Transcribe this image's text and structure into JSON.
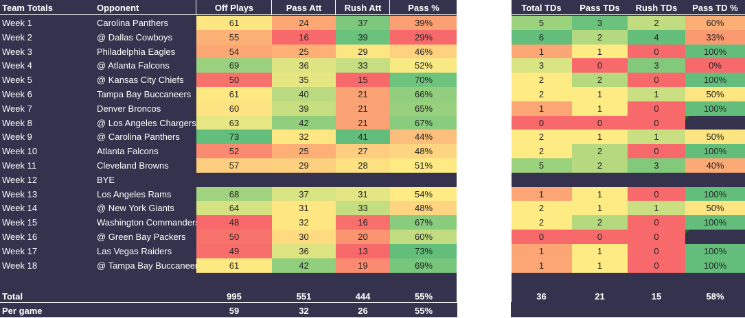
{
  "headers": {
    "left": [
      "Team Totals",
      "Opponent",
      "Off Plays",
      "Pass Att",
      "Rush Att",
      "Pass %"
    ],
    "right": [
      "Total TDs",
      "Pass TDs",
      "Rush TDs",
      "Pass TD %"
    ]
  },
  "rows": [
    {
      "week": "Week 1",
      "opp": "Carolina Panthers",
      "off": "61",
      "pass": "24",
      "rush": "37",
      "pct": "39%",
      "ttd": "5",
      "ptd": "3",
      "rtd": "2",
      "tdp": "60%",
      "c": [
        "#fde581",
        "#fca774",
        "#7dc87c",
        "#fba073"
      ],
      "rc": [
        "#9bd27e",
        "#6bc27c",
        "#c2dd81",
        "#fbae76"
      ]
    },
    {
      "week": "Week 2",
      "opp": "@ Dallas Cowboys",
      "off": "55",
      "pass": "16",
      "rush": "39",
      "pct": "29%",
      "ttd": "6",
      "ptd": "2",
      "rtd": "4",
      "tdp": "33%",
      "c": [
        "#fcb277",
        "#f8696b",
        "#6bc27c",
        "#f8696b"
      ],
      "rc": [
        "#63be7b",
        "#b5d980",
        "#63be7b",
        "#fb9a71"
      ]
    },
    {
      "week": "Week 3",
      "opp": "Philadelphia Eagles",
      "off": "54",
      "pass": "25",
      "rush": "29",
      "pct": "46%",
      "ttd": "1",
      "ptd": "1",
      "rtd": "0",
      "tdp": "100%",
      "c": [
        "#fca875",
        "#fcb076",
        "#fde582",
        "#fdd17f"
      ],
      "rc": [
        "#fba674",
        "#ffeb84",
        "#f8696b",
        "#63be7b"
      ]
    },
    {
      "week": "Week 4",
      "opp": "@ Atlanta Falcons",
      "off": "69",
      "pass": "36",
      "rush": "33",
      "pct": "52%",
      "ttd": "3",
      "ptd": "0",
      "rtd": "3",
      "tdp": "0%",
      "c": [
        "#9ad17e",
        "#dee482",
        "#c5de81",
        "#f8e983"
      ],
      "rc": [
        "#d9e482",
        "#f8696b",
        "#83c97c",
        "#f8696b"
      ]
    },
    {
      "week": "Week 5",
      "opp": "@ Kansas City Chiefs",
      "off": "50",
      "pass": "35",
      "rush": "15",
      "pct": "70%",
      "ttd": "2",
      "ptd": "2",
      "rtd": "0",
      "tdp": "100%",
      "c": [
        "#f8726c",
        "#e6e683",
        "#f8696b",
        "#6ec47c"
      ],
      "rc": [
        "#ffeb84",
        "#b6d980",
        "#f8696b",
        "#63be7b"
      ]
    },
    {
      "week": "Week 6",
      "opp": "Tampa Bay Buccaneers",
      "off": "61",
      "pass": "40",
      "rush": "21",
      "pct": "66%",
      "ttd": "2",
      "ptd": "1",
      "rtd": "1",
      "tdp": "50%",
      "c": [
        "#fde882",
        "#b9da80",
        "#fba274",
        "#91ce7e"
      ],
      "rc": [
        "#ffeb84",
        "#ffeb84",
        "#c9df81",
        "#fde582"
      ]
    },
    {
      "week": "Week 7",
      "opp": "Denver Broncos",
      "off": "60",
      "pass": "39",
      "rush": "21",
      "pct": "65%",
      "ttd": "1",
      "ptd": "1",
      "rtd": "0",
      "tdp": "100%",
      "c": [
        "#fee382",
        "#c7de81",
        "#fba274",
        "#98d07e"
      ],
      "rc": [
        "#fba674",
        "#ffeb84",
        "#f8696b",
        "#63be7b"
      ]
    },
    {
      "week": "Week 8",
      "opp": "@ Los Angeles Chargers",
      "off": "63",
      "pass": "42",
      "rush": "21",
      "pct": "67%",
      "ttd": "0",
      "ptd": "0",
      "rtd": "0",
      "tdp": "",
      "c": [
        "#e6e683",
        "#91ce7e",
        "#fba274",
        "#89cc7d"
      ],
      "rc": [
        "#f8696b",
        "#f8696b",
        "#f8696b",
        "#34324c"
      ],
      "flag": true
    },
    {
      "week": "Week 9",
      "opp": "@ Carolina Panthers",
      "off": "73",
      "pass": "32",
      "rush": "41",
      "pct": "44%",
      "ttd": "2",
      "ptd": "1",
      "rtd": "1",
      "tdp": "50%",
      "c": [
        "#63be7b",
        "#fee783",
        "#63be7b",
        "#fcbe7b"
      ],
      "rc": [
        "#ffeb84",
        "#ffeb84",
        "#c9df81",
        "#fde582"
      ]
    },
    {
      "week": "Week 10",
      "opp": "Atlanta Falcons",
      "off": "52",
      "pass": "25",
      "rush": "27",
      "pct": "48%",
      "ttd": "2",
      "ptd": "2",
      "rtd": "0",
      "tdp": "100%",
      "c": [
        "#fa8b70",
        "#fcb076",
        "#fecd7f",
        "#fdd580"
      ],
      "rc": [
        "#ffeb84",
        "#b6d980",
        "#f8696b",
        "#63be7b"
      ]
    },
    {
      "week": "Week 11",
      "opp": "Cleveland Browns",
      "off": "57",
      "pass": "29",
      "rush": "28",
      "pct": "51%",
      "ttd": "5",
      "ptd": "2",
      "rtd": "3",
      "tdp": "40%",
      "c": [
        "#fdce7f",
        "#fdd07f",
        "#fde081",
        "#feea83"
      ],
      "rc": [
        "#9bd27e",
        "#b6d980",
        "#83c97c",
        "#fbaa75"
      ]
    },
    {
      "week": "Week 12",
      "opp": "BYE",
      "bye": true
    },
    {
      "week": "Week 13",
      "opp": "Los Angeles Rams",
      "off": "68",
      "pass": "37",
      "rush": "31",
      "pct": "54%",
      "ttd": "1",
      "ptd": "1",
      "rtd": "0",
      "tdp": "100%",
      "c": [
        "#a0d27f",
        "#d8e382",
        "#e4e583",
        "#ffeb84"
      ],
      "rc": [
        "#fba674",
        "#ffeb84",
        "#f8696b",
        "#63be7b"
      ]
    },
    {
      "week": "Week 14",
      "opp": "@ New York Giants",
      "off": "64",
      "pass": "31",
      "rush": "33",
      "pct": "48%",
      "ttd": "2",
      "ptd": "1",
      "rtd": "1",
      "tdp": "50%",
      "c": [
        "#d4e282",
        "#fee783",
        "#c5de81",
        "#fdd580"
      ],
      "rc": [
        "#ffeb84",
        "#ffeb84",
        "#c9df81",
        "#fde582"
      ]
    },
    {
      "week": "Week 15",
      "opp": "Washington Commanders",
      "off": "48",
      "pass": "32",
      "rush": "16",
      "pct": "67%",
      "ttd": "2",
      "ptd": "2",
      "rtd": "0",
      "tdp": "100%",
      "c": [
        "#f8696b",
        "#fee783",
        "#f8706c",
        "#89cc7d"
      ],
      "rc": [
        "#ffeb84",
        "#b6d980",
        "#f8696b",
        "#63be7b"
      ]
    },
    {
      "week": "Week 16",
      "opp": "@ Green Bay Packers",
      "off": "50",
      "pass": "30",
      "rush": "20",
      "pct": "60%",
      "ttd": "0",
      "ptd": "0",
      "rtd": "0",
      "tdp": "",
      "c": [
        "#f8726c",
        "#fedb81",
        "#fa9471",
        "#c2dd81"
      ],
      "rc": [
        "#f8696b",
        "#f8696b",
        "#f8696b",
        "#34324c"
      ],
      "flag": true
    },
    {
      "week": "Week 17",
      "opp": "Las Vegas Raiders",
      "off": "49",
      "pass": "36",
      "rush": "13",
      "pct": "73%",
      "ttd": "1",
      "ptd": "1",
      "rtd": "0",
      "tdp": "100%",
      "c": [
        "#f86e6c",
        "#dee482",
        "#f8696b",
        "#63be7b"
      ],
      "rc": [
        "#fba674",
        "#ffeb84",
        "#f8696b",
        "#63be7b"
      ]
    },
    {
      "week": "Week 18",
      "opp": "@ Tampa Bay Buccaneers",
      "off": "61",
      "pass": "42",
      "rush": "19",
      "pct": "69%",
      "ttd": "1",
      "ptd": "1",
      "rtd": "0",
      "tdp": "100%",
      "c": [
        "#fde882",
        "#91ce7e",
        "#fa8b70",
        "#78c67c"
      ],
      "rc": [
        "#fba674",
        "#ffeb84",
        "#f8696b",
        "#63be7b"
      ]
    }
  ],
  "totals": {
    "label": "Total",
    "off": "995",
    "pass": "551",
    "rush": "444",
    "pct": "55%",
    "ttd": "36",
    "ptd": "21",
    "rtd": "15",
    "tdp": "58%"
  },
  "pergame": {
    "label": "Per game",
    "off": "59",
    "pass": "32",
    "rush": "26",
    "pct": "55%"
  }
}
